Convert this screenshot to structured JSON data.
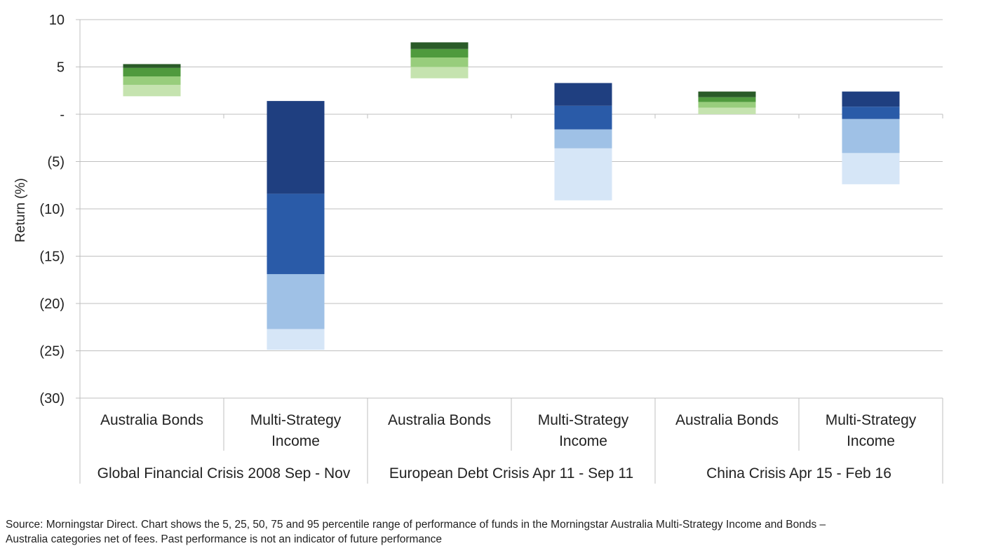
{
  "chart_data": {
    "type": "bar",
    "subtype": "floating-stacked-percentile-range",
    "title": "",
    "xlabel": "",
    "ylabel": "Return (%)",
    "ylim": [
      -30,
      10
    ],
    "yticks": [
      {
        "value": 10,
        "label": "10"
      },
      {
        "value": 5,
        "label": "5"
      },
      {
        "value": 0,
        "label": "-"
      },
      {
        "value": -5,
        "label": "(5)"
      },
      {
        "value": -10,
        "label": "(10)"
      },
      {
        "value": -15,
        "label": "(15)"
      },
      {
        "value": -20,
        "label": "(20)"
      },
      {
        "value": -25,
        "label": "(25)"
      },
      {
        "value": -30,
        "label": "(30)"
      }
    ],
    "grid": true,
    "legend": "none",
    "percentile_bands": [
      "5-25",
      "25-50",
      "50-75",
      "75-95"
    ],
    "colors": {
      "green": [
        "#c5e3af",
        "#98cd7c",
        "#4f9a3d",
        "#2a5b28"
      ],
      "blue": [
        "#d6e6f7",
        "#9fc1e6",
        "#2a5ba8",
        "#1f3f80"
      ],
      "grid": "#bfbfbf",
      "axis": "#bfbfbf"
    },
    "groups": [
      {
        "label": "Global Financial Crisis 2008 Sep - Nov",
        "bars": [
          {
            "label_lines": [
              "Australia Bonds"
            ],
            "palette": "green",
            "percentiles": {
              "p5": 1.9,
              "p25": 3.1,
              "p50": 4.0,
              "p75": 4.9,
              "p95": 5.3
            }
          },
          {
            "label_lines": [
              "Multi-Strategy",
              "Income"
            ],
            "palette": "blue",
            "percentiles": {
              "p5": -24.9,
              "p25": -22.7,
              "p50": -16.9,
              "p75": -8.4,
              "p95": 1.4
            }
          }
        ]
      },
      {
        "label": "European Debt Crisis Apr 11 - Sep 11",
        "bars": [
          {
            "label_lines": [
              "Australia Bonds"
            ],
            "palette": "green",
            "percentiles": {
              "p5": 3.8,
              "p25": 5.0,
              "p50": 6.0,
              "p75": 6.9,
              "p95": 7.6
            }
          },
          {
            "label_lines": [
              "Multi-Strategy",
              "Income"
            ],
            "palette": "blue",
            "percentiles": {
              "p5": -9.1,
              "p25": -3.6,
              "p50": -1.6,
              "p75": 0.9,
              "p95": 3.3
            }
          }
        ]
      },
      {
        "label": "China Crisis Apr 15 - Feb 16",
        "bars": [
          {
            "label_lines": [
              "Australia Bonds"
            ],
            "palette": "green",
            "percentiles": {
              "p5": 0.0,
              "p25": 0.7,
              "p50": 1.3,
              "p75": 1.8,
              "p95": 2.4
            }
          },
          {
            "label_lines": [
              "Multi-Strategy",
              "Income"
            ],
            "palette": "blue",
            "percentiles": {
              "p5": -7.4,
              "p25": -4.1,
              "p50": -0.5,
              "p75": 0.8,
              "p95": 2.4
            }
          }
        ]
      }
    ]
  },
  "footer": {
    "source_line1": "Source: Morningstar Direct. Chart shows the 5, 25, 50, 75 and 95 percentile range of performance of funds in the Morningstar Australia Multi-Strategy Income and Bonds –",
    "source_line2": "Australia categories net of fees. Past performance is not an indicator of future performance"
  }
}
